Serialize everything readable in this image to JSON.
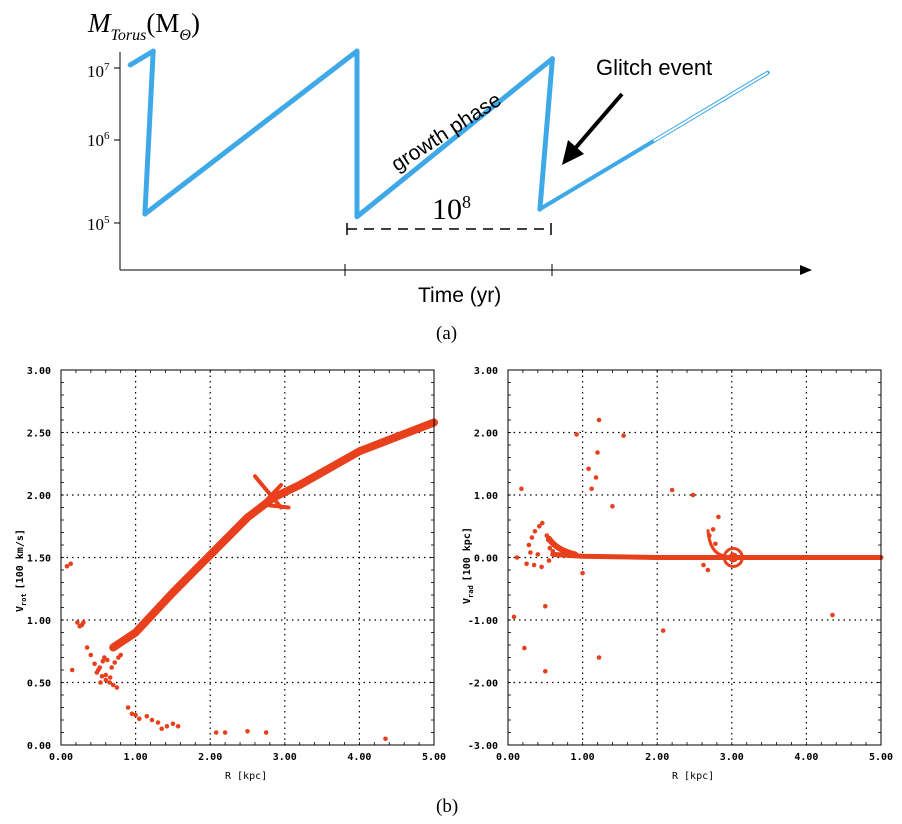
{
  "figure": {
    "panel_a_label": "(a)",
    "panel_b_label": "(b)"
  },
  "colors": {
    "torus_line": "#3fa9e8",
    "scatter_points": "#e8401c",
    "axis": "#000000",
    "grid": "#000000"
  },
  "chart_data": [
    {
      "type": "line",
      "y_axis_label_main": "M",
      "y_axis_label_sub": "Torus",
      "y_axis_label_unit": "(M",
      "y_axis_label_unit_sub": "Θ",
      "y_axis_label_close": ")",
      "xlabel": "Time (yr)",
      "yscale": "log",
      "ytick_base": "10",
      "yticks": [
        {
          "value": 100000,
          "exp": "5"
        },
        {
          "value": 1000000,
          "exp": "6"
        },
        {
          "value": 10000000,
          "exp": "7"
        }
      ],
      "annotations": {
        "growth_phase": "growth phase",
        "glitch_event": "Glitch event",
        "interval_base": "10",
        "interval_exp": "8"
      },
      "series": [
        {
          "points": [
            [
              0.0,
              10000000
            ],
            [
              0.22,
              15000000
            ],
            [
              0.14,
              130000
            ],
            [
              2.17,
              15000000
            ],
            [
              2.17,
              120000
            ],
            [
              4.04,
              12000000
            ],
            [
              3.92,
              150000
            ],
            [
              6.1,
              8000000
            ]
          ]
        }
      ],
      "xlim": [
        -0.05,
        6.4
      ],
      "ylim": [
        30000,
        40000000
      ],
      "grid": false
    },
    {
      "type": "scatter",
      "xlabel": "R [kpc]",
      "ylabel_main": "V",
      "ylabel_sub": "rot",
      "ylabel_unit": "[100 km/s]",
      "xlim": [
        0,
        5
      ],
      "ylim": [
        0,
        3
      ],
      "xticks": [
        "0.00",
        "1.00",
        "2.00",
        "3.00",
        "4.00",
        "5.00"
      ],
      "yticks": [
        "0.00",
        "0.50",
        "1.00",
        "1.50",
        "2.00",
        "2.50",
        "3.00"
      ],
      "grid": true,
      "main_branch": [
        [
          0.7,
          0.78
        ],
        [
          1.0,
          0.9
        ],
        [
          1.5,
          1.22
        ],
        [
          2.0,
          1.52
        ],
        [
          2.5,
          1.82
        ],
        [
          2.85,
          1.98
        ],
        [
          3.2,
          2.08
        ],
        [
          4.0,
          2.35
        ],
        [
          5.0,
          2.58
        ]
      ],
      "scatter_points": [
        [
          0.08,
          1.43
        ],
        [
          0.13,
          1.45
        ],
        [
          0.22,
          0.98
        ],
        [
          0.25,
          0.95
        ],
        [
          0.3,
          0.98
        ],
        [
          0.28,
          0.96
        ],
        [
          0.15,
          0.6
        ],
        [
          0.35,
          0.78
        ],
        [
          0.4,
          0.72
        ],
        [
          0.45,
          0.65
        ],
        [
          0.5,
          0.6
        ],
        [
          0.55,
          0.55
        ],
        [
          0.6,
          0.52
        ],
        [
          0.65,
          0.5
        ],
        [
          0.7,
          0.48
        ],
        [
          0.75,
          0.46
        ],
        [
          0.48,
          0.58
        ],
        [
          0.52,
          0.62
        ],
        [
          0.58,
          0.7
        ],
        [
          0.62,
          0.68
        ],
        [
          0.68,
          0.62
        ],
        [
          0.72,
          0.66
        ],
        [
          0.77,
          0.7
        ],
        [
          0.8,
          0.72
        ],
        [
          0.53,
          0.5
        ],
        [
          0.6,
          0.56
        ],
        [
          0.66,
          0.54
        ],
        [
          0.56,
          0.67
        ],
        [
          0.9,
          0.3
        ],
        [
          0.95,
          0.25
        ],
        [
          1.0,
          0.24
        ],
        [
          1.05,
          0.21
        ],
        [
          1.15,
          0.23
        ],
        [
          1.22,
          0.2
        ],
        [
          1.3,
          0.18
        ],
        [
          1.35,
          0.13
        ],
        [
          1.42,
          0.15
        ],
        [
          1.5,
          0.17
        ],
        [
          1.57,
          0.15
        ],
        [
          2.08,
          0.1
        ],
        [
          2.2,
          0.1
        ],
        [
          2.5,
          0.11
        ],
        [
          2.75,
          0.1
        ],
        [
          4.35,
          0.05
        ]
      ]
    },
    {
      "type": "scatter",
      "xlabel": "R [kpc]",
      "ylabel_main": "V",
      "ylabel_sub": "rad",
      "ylabel_unit": "[100 kpc]",
      "xlim": [
        0,
        5
      ],
      "ylim": [
        -3,
        3
      ],
      "xticks": [
        "0.00",
        "1.00",
        "2.00",
        "3.00",
        "4.00",
        "5.00"
      ],
      "yticks": [
        "-3.00",
        "-2.00",
        "-1.00",
        "0.00",
        "1.00",
        "2.00",
        "3.00"
      ],
      "grid": true,
      "main_branch": [
        [
          0.6,
          0.05
        ],
        [
          1.0,
          0.02
        ],
        [
          2.0,
          0.0
        ],
        [
          3.0,
          0.0
        ],
        [
          4.0,
          0.0
        ],
        [
          5.0,
          0.0
        ]
      ],
      "scatter_points": [
        [
          0.08,
          -0.95
        ],
        [
          0.12,
          0.0
        ],
        [
          0.18,
          1.1
        ],
        [
          0.22,
          -1.45
        ],
        [
          0.28,
          0.2
        ],
        [
          0.32,
          0.32
        ],
        [
          0.36,
          0.42
        ],
        [
          0.42,
          0.5
        ],
        [
          0.46,
          0.55
        ],
        [
          0.5,
          -0.78
        ],
        [
          0.5,
          -1.82
        ],
        [
          0.52,
          0.35
        ],
        [
          0.54,
          0.28
        ],
        [
          0.56,
          0.15
        ],
        [
          0.35,
          -0.12
        ],
        [
          0.4,
          0.05
        ],
        [
          0.45,
          -0.15
        ],
        [
          0.55,
          -0.05
        ],
        [
          0.6,
          0.1
        ],
        [
          0.25,
          -0.1
        ],
        [
          0.3,
          0.08
        ],
        [
          0.92,
          1.97
        ],
        [
          1.0,
          -0.25
        ],
        [
          1.08,
          1.42
        ],
        [
          1.12,
          1.1
        ],
        [
          1.18,
          1.28
        ],
        [
          1.22,
          2.2
        ],
        [
          1.2,
          1.68
        ],
        [
          1.22,
          -1.6
        ],
        [
          1.4,
          0.82
        ],
        [
          1.55,
          1.95
        ],
        [
          2.08,
          -1.17
        ],
        [
          2.2,
          1.08
        ],
        [
          2.48,
          1.0
        ],
        [
          2.7,
          0.35
        ],
        [
          2.75,
          0.45
        ],
        [
          2.62,
          -0.12
        ],
        [
          2.68,
          -0.2
        ],
        [
          2.78,
          0.22
        ],
        [
          2.82,
          0.65
        ],
        [
          4.35,
          -0.92
        ]
      ]
    }
  ]
}
